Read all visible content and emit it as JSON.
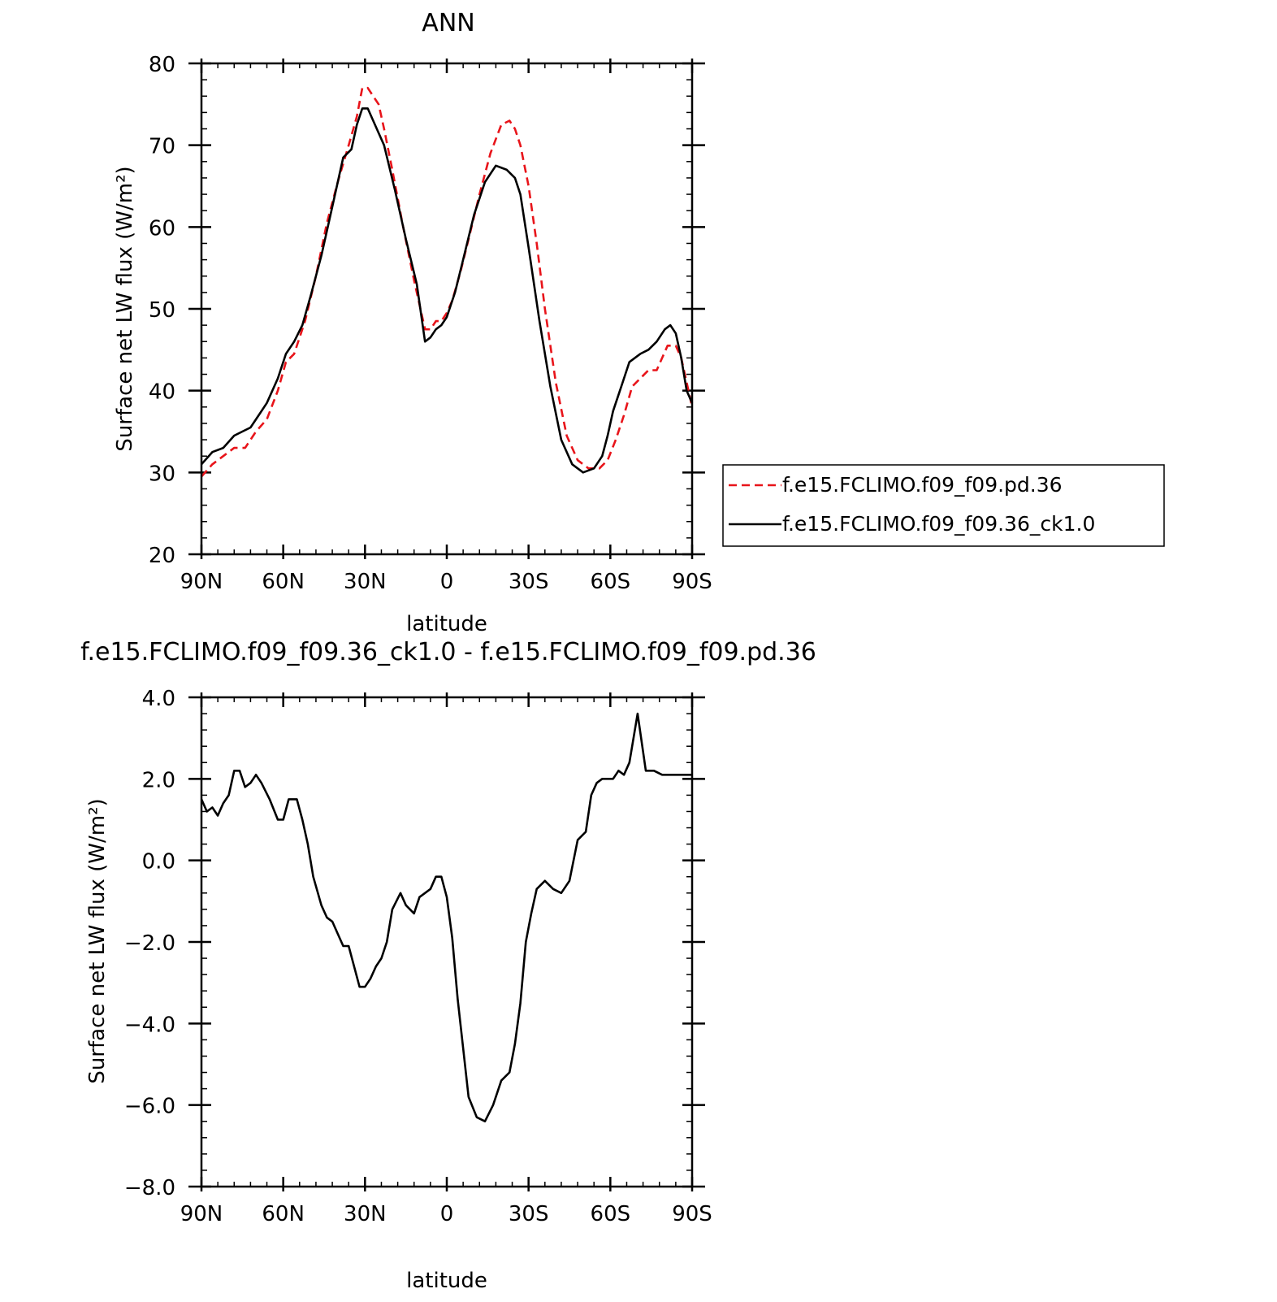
{
  "chart_data": [
    {
      "type": "line",
      "title": "ANN",
      "xlabel": "latitude",
      "ylabel": "Surface net LW flux (W/m²)",
      "xlim": [
        90,
        -90
      ],
      "ylim": [
        20,
        80
      ],
      "x_ticks": [
        90,
        60,
        30,
        0,
        -30,
        -60,
        -90
      ],
      "x_tick_labels": [
        "90N",
        "60N",
        "30N",
        "0",
        "30S",
        "60S",
        "90S"
      ],
      "y_ticks": [
        20,
        30,
        40,
        50,
        60,
        70,
        80
      ],
      "y_tick_labels": [
        "20",
        "30",
        "40",
        "50",
        "60",
        "70",
        "80"
      ],
      "grid": false,
      "legend_position": "right",
      "series": [
        {
          "name": "f.e15.FCLIMO.f09_f09.pd.36",
          "color": "#e8141a",
          "dash": "dashed",
          "x": [
            90,
            86,
            82,
            78,
            74,
            70,
            66,
            62,
            59,
            56,
            52,
            48,
            44,
            40,
            36,
            33,
            31,
            29,
            27,
            25,
            23,
            20,
            16,
            12,
            8,
            6,
            4,
            2,
            0,
            -2,
            -5,
            -8,
            -12,
            -16,
            -20,
            -23,
            -25,
            -27,
            -30,
            -33,
            -36,
            -40,
            -44,
            -48,
            -52,
            -56,
            -59,
            -62,
            -65,
            -68,
            -71,
            -74,
            -77,
            -79,
            -81,
            -84,
            -86,
            -88,
            -90
          ],
          "y": [
            29.5,
            31.0,
            32.0,
            33.0,
            33.0,
            35.0,
            36.5,
            40.0,
            43.5,
            44.5,
            48.5,
            54.0,
            60.5,
            65.5,
            70.0,
            73.5,
            77.0,
            77.0,
            76.0,
            75.0,
            72.0,
            67.0,
            60.0,
            53.5,
            47.5,
            47.5,
            48.5,
            48.5,
            49.5,
            51.0,
            54.5,
            58.5,
            64.0,
            69.0,
            72.5,
            73.0,
            72.0,
            70.0,
            65.0,
            58.0,
            50.0,
            41.0,
            34.5,
            31.5,
            30.5,
            30.5,
            31.5,
            34.0,
            37.0,
            40.5,
            41.5,
            42.5,
            42.5,
            44.0,
            45.5,
            45.5,
            44.0,
            41.0,
            38.0
          ]
        },
        {
          "name": "f.e15.FCLIMO.f09_f09.36_ck1.0",
          "color": "#000000",
          "dash": "solid",
          "x": [
            90,
            86,
            82,
            78,
            75,
            72,
            69,
            66,
            62,
            59,
            56,
            53,
            50,
            46,
            42,
            38,
            35,
            33,
            31,
            29,
            27,
            25,
            23,
            19,
            15,
            11,
            8,
            6,
            4,
            2,
            0,
            -3,
            -6,
            -10,
            -14,
            -18,
            -22,
            -25,
            -27,
            -30,
            -34,
            -38,
            -42,
            -46,
            -50,
            -54,
            -57,
            -59,
            -61,
            -64,
            -67,
            -71,
            -74,
            -77,
            -80,
            -82,
            -84,
            -86,
            -88,
            -90
          ],
          "y": [
            31.0,
            32.5,
            33.0,
            34.5,
            35.0,
            35.5,
            37.0,
            38.5,
            41.5,
            44.5,
            46.0,
            48.0,
            51.5,
            56.5,
            62.5,
            68.5,
            69.5,
            72.5,
            74.5,
            74.5,
            73.0,
            71.5,
            70.0,
            64.5,
            58.5,
            53.0,
            46.0,
            46.5,
            47.5,
            48.0,
            49.0,
            52.0,
            56.0,
            61.5,
            65.5,
            67.5,
            67.0,
            66.0,
            64.0,
            57.5,
            48.5,
            40.5,
            34.0,
            31.0,
            30.0,
            30.5,
            32.0,
            34.5,
            37.5,
            40.5,
            43.5,
            44.5,
            45.0,
            46.0,
            47.5,
            48.0,
            47.0,
            44.0,
            40.0,
            38.5
          ]
        }
      ]
    },
    {
      "type": "line",
      "title": "f.e15.FCLIMO.f09_f09.36_ck1.0 - f.e15.FCLIMO.f09_f09.pd.36",
      "xlabel": "latitude",
      "ylabel": "Surface net LW flux (W/m²)",
      "xlim": [
        90,
        -90
      ],
      "ylim": [
        -8.0,
        4.0
      ],
      "x_ticks": [
        90,
        60,
        30,
        0,
        -30,
        -60,
        -90
      ],
      "x_tick_labels": [
        "90N",
        "60N",
        "30N",
        "0",
        "30S",
        "60S",
        "90S"
      ],
      "y_ticks": [
        -8,
        -6,
        -4,
        -2,
        0,
        2,
        4
      ],
      "y_tick_labels": [
        "−8.0",
        "−6.0",
        "−4.0",
        "−2.0",
        "0.0",
        "2.0",
        "4.0"
      ],
      "grid": false,
      "series": [
        {
          "color": "#000000",
          "dash": "solid",
          "x": [
            90,
            88,
            86,
            84,
            82,
            80,
            78,
            76,
            74,
            72,
            70,
            68,
            65,
            62,
            60,
            58,
            55,
            53,
            51,
            49,
            46,
            44,
            42,
            40,
            38,
            36,
            34,
            32,
            30,
            28,
            26,
            24,
            22,
            20,
            17,
            15,
            12,
            10,
            8,
            6,
            4,
            2,
            0,
            -2,
            -4,
            -6,
            -8,
            -11,
            -14,
            -17,
            -20,
            -23,
            -25,
            -27,
            -29,
            -31,
            -33,
            -36,
            -39,
            -42,
            -45,
            -48,
            -51,
            -53,
            -55,
            -57,
            -59,
            -61,
            -63,
            -65,
            -67,
            -70,
            -73,
            -76,
            -79,
            -82,
            -84,
            -86,
            -87,
            -88,
            -89,
            -90
          ],
          "y": [
            1.5,
            1.2,
            1.3,
            1.1,
            1.4,
            1.6,
            2.2,
            2.2,
            1.8,
            1.9,
            2.1,
            1.9,
            1.5,
            1.0,
            1.0,
            1.5,
            1.5,
            1.0,
            0.4,
            -0.4,
            -1.1,
            -1.4,
            -1.5,
            -1.8,
            -2.1,
            -2.1,
            -2.6,
            -3.1,
            -3.1,
            -2.9,
            -2.6,
            -2.4,
            -2.0,
            -1.2,
            -0.8,
            -1.1,
            -1.3,
            -0.9,
            -0.8,
            -0.7,
            -0.4,
            -0.4,
            -0.9,
            -1.9,
            -3.4,
            -4.6,
            -5.8,
            -6.3,
            -6.4,
            -6.0,
            -5.4,
            -5.2,
            -4.5,
            -3.5,
            -2.0,
            -1.3,
            -0.7,
            -0.5,
            -0.7,
            -0.8,
            -0.5,
            0.5,
            0.7,
            1.6,
            1.9,
            2.0,
            2.0,
            2.0,
            2.2,
            2.1,
            2.4,
            3.6,
            2.2,
            2.2,
            2.1,
            2.1,
            2.1,
            2.1,
            2.1,
            2.1,
            2.1,
            2.1
          ]
        }
      ]
    }
  ]
}
